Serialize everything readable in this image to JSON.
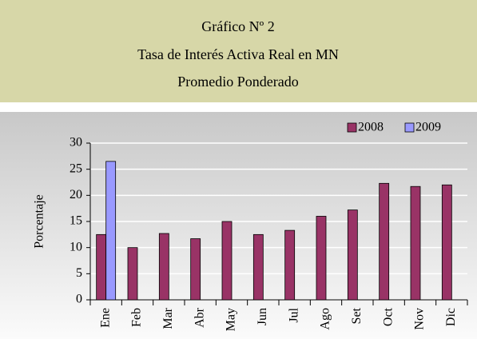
{
  "chart_data": {
    "type": "bar",
    "title": "Gráfico Nº 2",
    "subtitle": [
      "Tasa de Interés Activa Real en MN",
      "Promedio Ponderado"
    ],
    "y_label": "Porcentaje",
    "categories": [
      "Ene",
      "Feb",
      "Mar",
      "Abr",
      "May",
      "Jun",
      "Jul",
      "Ago",
      "Set",
      "Oct",
      "Nov",
      "Dic"
    ],
    "series": [
      {
        "name": "2008",
        "color": "#993366",
        "values": [
          12.5,
          10,
          12.7,
          11.7,
          15,
          12.5,
          13.3,
          16,
          17.2,
          22.3,
          21.7,
          22
        ]
      },
      {
        "name": "2009",
        "color": "#9999ff",
        "values": [
          26.5,
          null,
          null,
          null,
          null,
          null,
          null,
          null,
          null,
          null,
          null,
          null
        ]
      }
    ],
    "ylim": [
      0,
      30
    ],
    "yticks": [
      0,
      5,
      10,
      15,
      20,
      25,
      30
    ],
    "grid": true,
    "legend": "top-right"
  }
}
